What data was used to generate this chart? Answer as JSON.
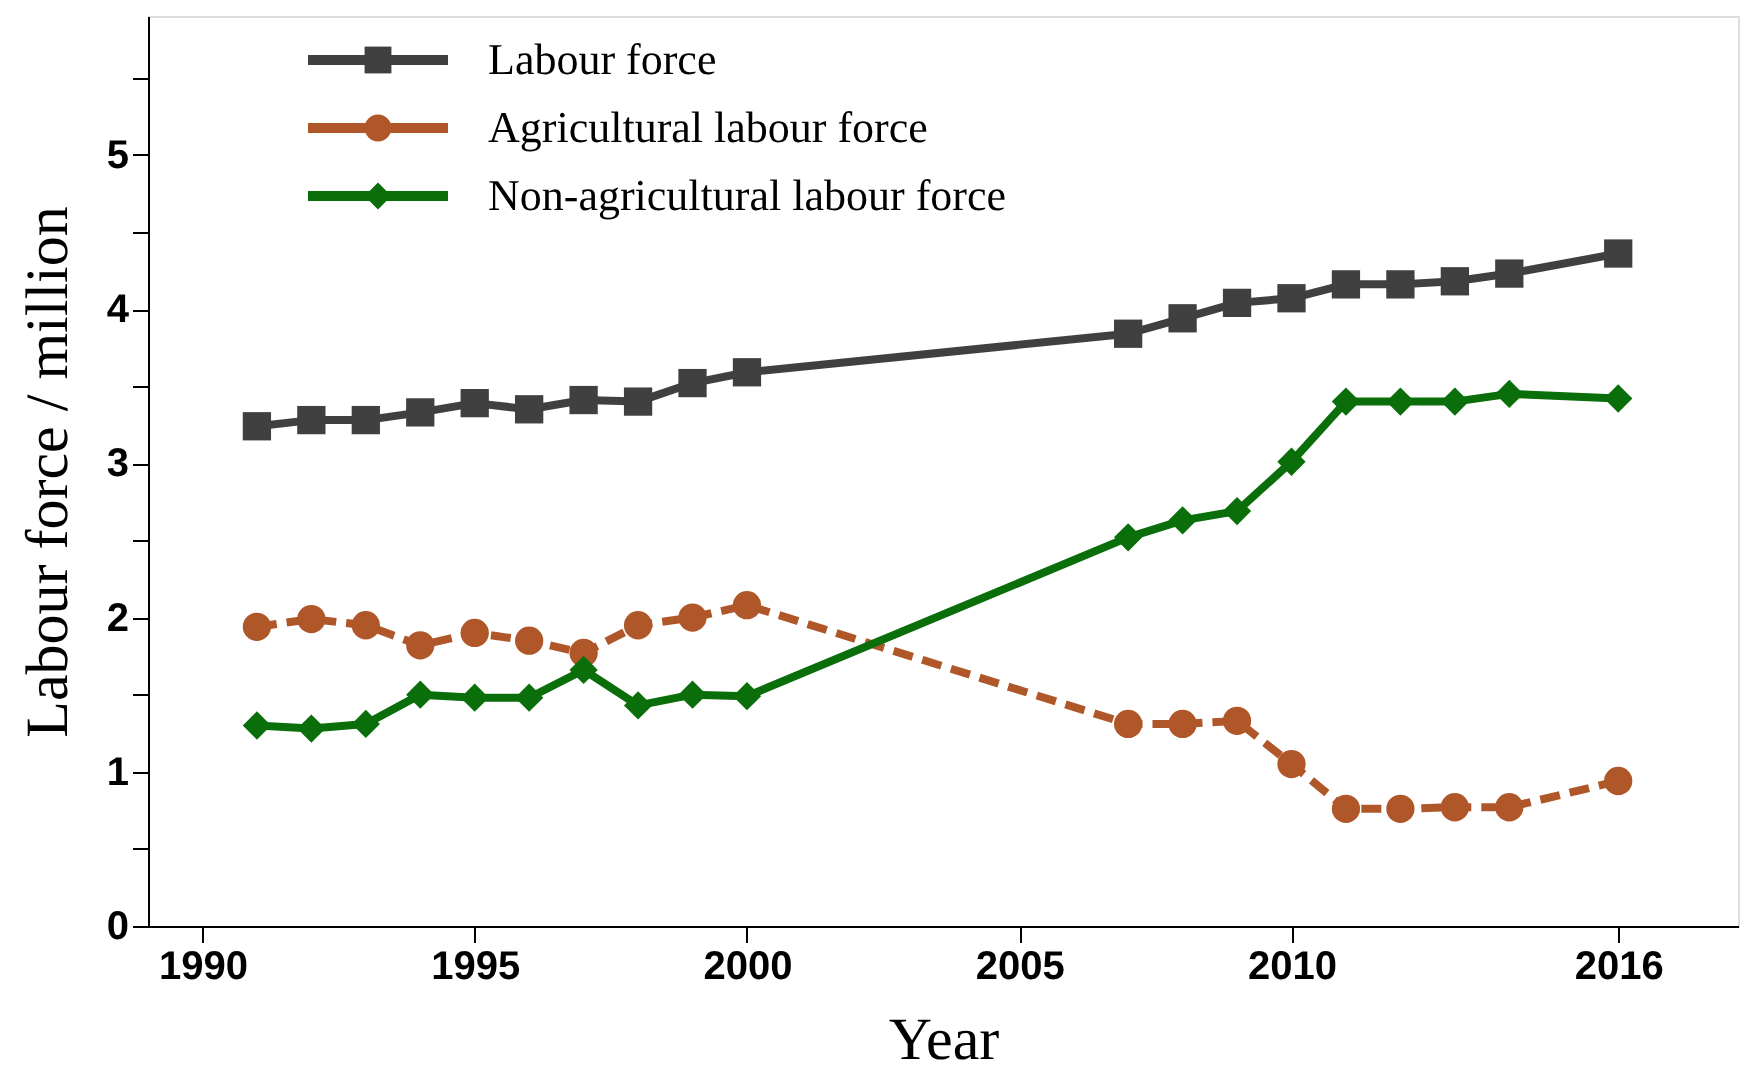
{
  "chart_data": {
    "type": "line",
    "xlabel": "Year",
    "ylabel": "Labour force / million",
    "x": [
      1991,
      1992,
      1993,
      1994,
      1995,
      1996,
      1997,
      1998,
      1999,
      2000,
      2007,
      2008,
      2009,
      2010,
      2011,
      2012,
      2013,
      2014,
      2016
    ],
    "series": [
      {
        "name": "Labour force",
        "color": "#404040",
        "marker": "square",
        "line_style": "solid",
        "values": [
          3.24,
          3.28,
          3.28,
          3.33,
          3.39,
          3.35,
          3.41,
          3.4,
          3.52,
          3.59,
          3.84,
          3.94,
          4.04,
          4.07,
          4.16,
          4.16,
          4.18,
          4.23,
          4.36
        ]
      },
      {
        "name": "Agricultural labour force",
        "color": "#b0572a",
        "marker": "circle",
        "line_style": "dashed",
        "values": [
          1.94,
          1.99,
          1.95,
          1.82,
          1.9,
          1.85,
          1.77,
          1.95,
          2.0,
          2.08,
          1.31,
          1.31,
          1.33,
          1.05,
          0.76,
          0.76,
          0.77,
          0.77,
          0.94
        ]
      },
      {
        "name": "Non-agricultural labour force",
        "color": "#0a6e0a",
        "marker": "diamond",
        "line_style": "solid",
        "values": [
          1.3,
          1.28,
          1.31,
          1.5,
          1.48,
          1.48,
          1.66,
          1.43,
          1.5,
          1.49,
          2.52,
          2.63,
          2.69,
          3.01,
          3.4,
          3.4,
          3.4,
          3.45,
          3.42
        ]
      }
    ],
    "xlim": [
      1989,
      2018.2
    ],
    "xticks": [
      1990,
      1995,
      2000,
      2005,
      2010,
      2016
    ],
    "ylim": [
      0,
      5.9
    ],
    "yticks": [
      0,
      {
        "value": 0.5,
        "label": null
      },
      1,
      {
        "value": 1.5,
        "label": null
      },
      2,
      {
        "value": 2.5,
        "label": null
      },
      3,
      {
        "value": 3.5,
        "label": null
      },
      4,
      {
        "value": 4.5,
        "label": null
      },
      5,
      {
        "value": 5.5,
        "label": null
      }
    ],
    "grid": false,
    "legend": "top left"
  }
}
